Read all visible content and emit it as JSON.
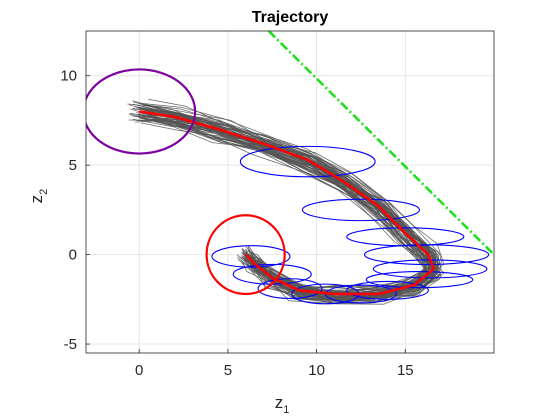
{
  "chart_data": {
    "type": "line",
    "title": "Trajectory",
    "xlabel": {
      "base": "z",
      "sub": "1"
    },
    "ylabel": {
      "base": "z",
      "sub": "2"
    },
    "xlim": [
      -3,
      20
    ],
    "ylim": [
      -5.5,
      12.5
    ],
    "xticks": [
      0,
      5,
      10,
      15
    ],
    "yticks": [
      -5,
      0,
      5,
      10
    ],
    "grid": true,
    "colors": {
      "trajectories": "#555555",
      "mean": "#ff0000",
      "ellipses": "#0000ff",
      "start_circle": "#7e00a0",
      "goal_circle": "#ff0000",
      "boundary": "#1fe01f"
    },
    "mean_trajectory": [
      [
        0,
        8
      ],
      [
        2,
        7.7
      ],
      [
        4.5,
        7
      ],
      [
        7,
        6.2
      ],
      [
        9.5,
        5.3
      ],
      [
        11.5,
        4.1
      ],
      [
        13.5,
        2.7
      ],
      [
        15,
        1.2
      ],
      [
        16.3,
        0
      ],
      [
        16.6,
        -0.8
      ],
      [
        15.5,
        -1.7
      ],
      [
        13.5,
        -2.2
      ],
      [
        11,
        -2.2
      ],
      [
        9,
        -2.0
      ],
      [
        7.5,
        -1.3
      ],
      [
        6.5,
        -0.5
      ],
      [
        6,
        0
      ]
    ],
    "sample_trajectories": {
      "count": 60,
      "spread": 0.55
    },
    "covariance_ellipses": [
      {
        "cx": 9.5,
        "cy": 5.2,
        "rx": 3.8,
        "ry": 0.85
      },
      {
        "cx": 12.5,
        "cy": 2.5,
        "rx": 3.3,
        "ry": 0.6
      },
      {
        "cx": 15.0,
        "cy": 1.0,
        "rx": 3.3,
        "ry": 0.5
      },
      {
        "cx": 16.2,
        "cy": 0.0,
        "rx": 3.5,
        "ry": 0.55
      },
      {
        "cx": 16.4,
        "cy": -0.8,
        "rx": 3.2,
        "ry": 0.5
      },
      {
        "cx": 15.8,
        "cy": -1.4,
        "rx": 3.0,
        "ry": 0.45
      },
      {
        "cx": 14.0,
        "cy": -2.0,
        "rx": 2.3,
        "ry": 0.5
      },
      {
        "cx": 12.5,
        "cy": -2.2,
        "rx": 2.0,
        "ry": 0.5
      },
      {
        "cx": 10.5,
        "cy": -2.2,
        "rx": 1.9,
        "ry": 0.55
      },
      {
        "cx": 8.5,
        "cy": -1.9,
        "rx": 1.8,
        "ry": 0.55
      },
      {
        "cx": 7.5,
        "cy": -1.1,
        "rx": 2.2,
        "ry": 0.55
      },
      {
        "cx": 6.3,
        "cy": -0.1,
        "rx": 2.2,
        "ry": 0.6
      }
    ],
    "start_circle": {
      "cx": 0,
      "cy": 8,
      "r": 3.15,
      "ry": 2.35
    },
    "goal_circle": {
      "cx": 6,
      "cy": 0,
      "r": 2.2,
      "ry": 2.2
    },
    "boundary_line": [
      [
        7.3,
        12.5
      ],
      [
        20,
        0
      ]
    ]
  }
}
